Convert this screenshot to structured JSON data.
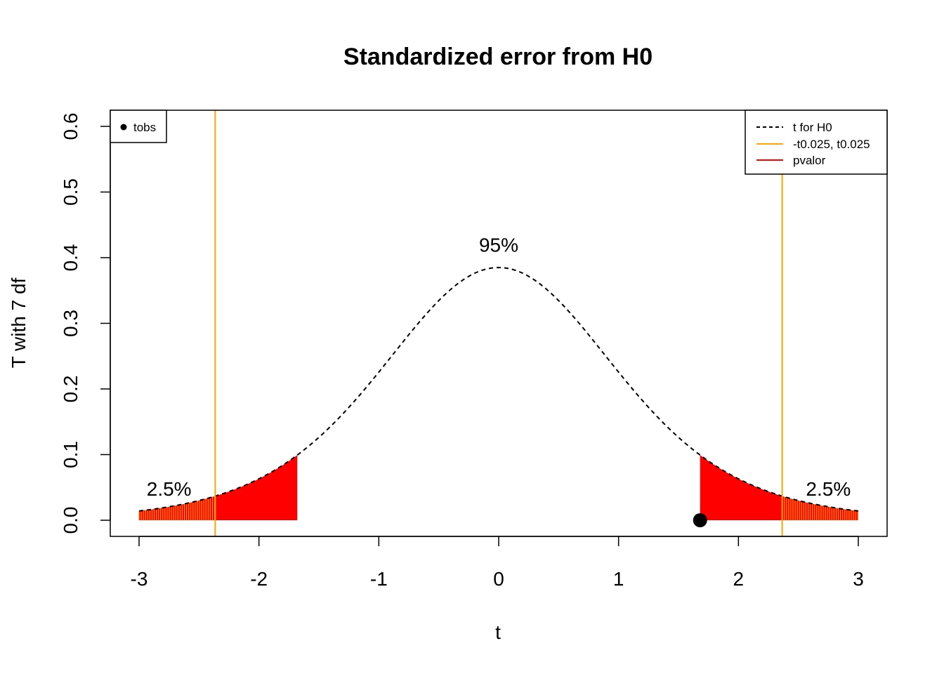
{
  "chart_data": {
    "type": "line",
    "title": "Standardized error from H0",
    "xlabel": "t",
    "ylabel": "T with 7 df",
    "xlim": [
      -3,
      3
    ],
    "ylim": [
      0,
      0.6
    ],
    "x_ticks": [
      -3,
      -2,
      -1,
      0,
      1,
      2,
      3
    ],
    "y_ticks": [
      0.0,
      0.1,
      0.2,
      0.3,
      0.4,
      0.5,
      0.6
    ],
    "x_tick_labels": [
      "-3",
      "-2",
      "-1",
      "0",
      "1",
      "2",
      "3"
    ],
    "y_tick_labels": [
      "0.0",
      "0.1",
      "0.2",
      "0.3",
      "0.4",
      "0.5",
      "0.6"
    ],
    "grid": false,
    "df": 7,
    "critical_values": [
      -2.365,
      2.365
    ],
    "tobs": 1.68,
    "pvalue_region": [
      [
        -3,
        -1.68
      ],
      [
        1.68,
        3
      ]
    ],
    "critical_region_hatch": [
      [
        -3,
        -2.365
      ],
      [
        2.365,
        3
      ]
    ],
    "colors": {
      "density_line": "#000000",
      "critical_lines": "#FFA500",
      "pvalue_fill": "#FF0000",
      "tobs_point": "#000000"
    },
    "annotations": [
      {
        "text": "95%",
        "x": 0,
        "y": 0.42
      },
      {
        "text": "2.5%",
        "x": -2.75,
        "y": 0.048
      },
      {
        "text": "2.5%",
        "x": 2.75,
        "y": 0.048
      }
    ],
    "legend_left": {
      "placement": "top-left",
      "items": [
        {
          "label": "tobs",
          "type": "point",
          "color": "#000000"
        }
      ]
    },
    "legend_right": {
      "placement": "top-right",
      "items": [
        {
          "label": "t for H0",
          "type": "dashed-line",
          "color": "#000000"
        },
        {
          "label": "-t0.025, t0.025",
          "type": "line",
          "color": "#FFA500"
        },
        {
          "label": "pvalor",
          "type": "line",
          "color": "#FF0000"
        }
      ]
    }
  }
}
